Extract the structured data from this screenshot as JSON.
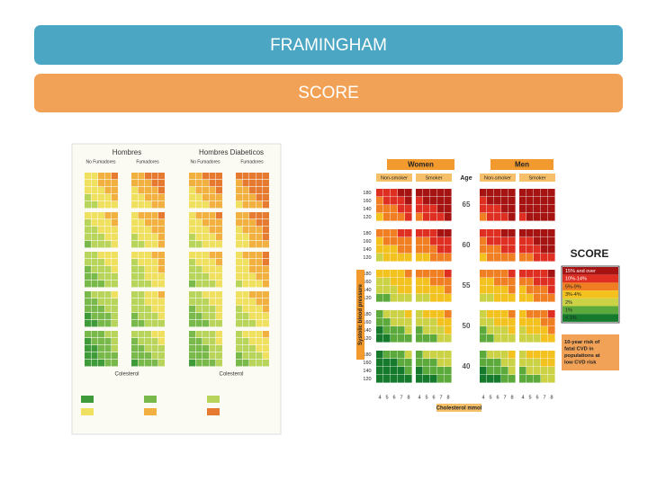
{
  "header": {
    "title": "FRAMINGHAM",
    "subtitle": "SCORE"
  },
  "left_chart": {
    "headings": [
      "Hombres",
      "Hombres Diabeticos"
    ],
    "columns": [
      "No Fumadores",
      "Fumadores",
      "No Fumadores",
      "Fumadores"
    ],
    "axis_labels": [
      "Colesterol",
      "Colesterol"
    ]
  },
  "right_chart": {
    "groups": [
      "Women",
      "Men"
    ],
    "columns": [
      "Non-smoker",
      "Smoker",
      "Non-smoker",
      "Smoker"
    ],
    "age_label": "Age",
    "ages": [
      "65",
      "60",
      "55",
      "50",
      "40"
    ],
    "sbp_levels": [
      "180",
      "160",
      "140",
      "120"
    ],
    "chol_levels": [
      "4",
      "5",
      "6",
      "7",
      "8"
    ],
    "y_label": "Systolic blood pressure",
    "x_label": "Cholesterol mmol",
    "logo": "SCORE",
    "legend": [
      "15% and over",
      "10%-14%",
      "5%-9%",
      "3%-4%",
      "2%",
      "1%",
      "< 1%"
    ],
    "legend_note": "10-year risk of fatal CVD in populations at low CVD risk"
  }
}
